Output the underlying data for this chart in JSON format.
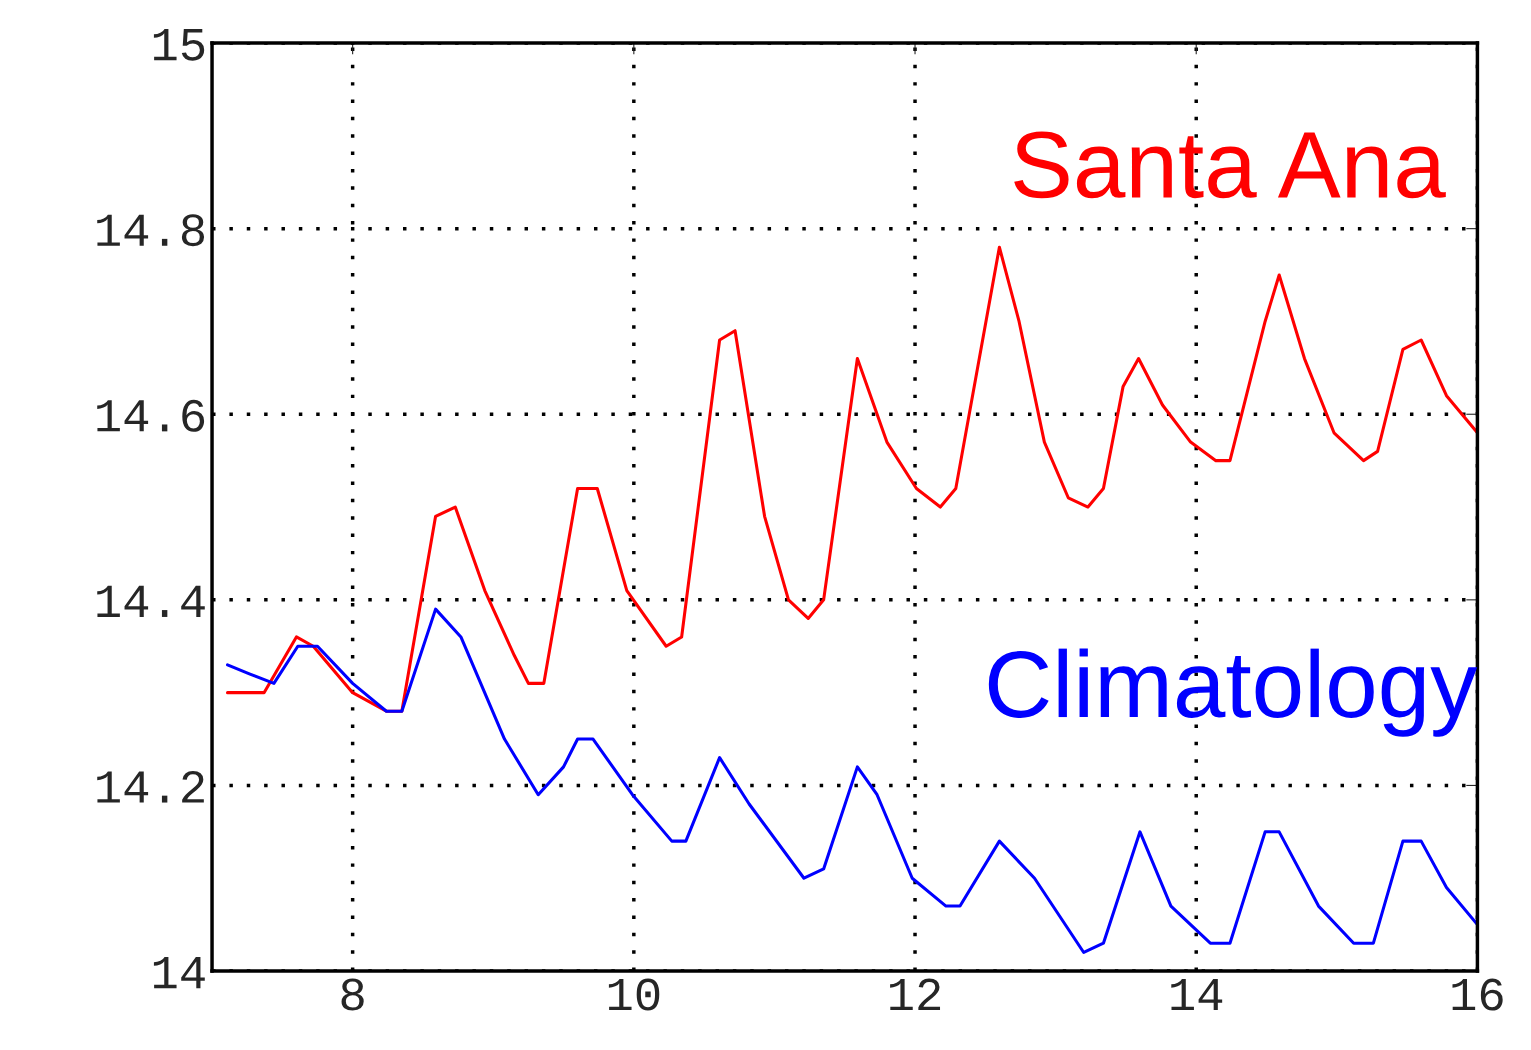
{
  "chart_data": {
    "type": "line",
    "xlim": [
      7,
      16
    ],
    "xticks": [
      8,
      10,
      12,
      14,
      16
    ],
    "ylim": [
      14,
      15
    ],
    "yticks": [
      14,
      14.2,
      14.4,
      14.6,
      14.8,
      15
    ],
    "grid": true,
    "legend": false,
    "series": [
      {
        "name": "Santa Ana",
        "color": "#ff0000",
        "x": [
          7.11,
          7.37,
          7.6,
          7.72,
          8.0,
          8.24,
          8.35,
          8.59,
          8.73,
          8.94,
          9.15,
          9.25,
          9.36,
          9.6,
          9.74,
          9.95,
          10.23,
          10.34,
          10.61,
          10.72,
          10.93,
          11.1,
          11.24,
          11.35,
          11.59,
          11.8,
          12.01,
          12.18,
          12.29,
          12.6,
          12.74,
          12.92,
          13.09,
          13.23,
          13.34,
          13.48,
          13.59,
          13.76,
          13.96,
          14.14,
          14.24,
          14.49,
          14.59,
          14.77,
          14.98,
          15.19,
          15.29,
          15.47,
          15.6,
          15.78,
          16.0
        ],
        "values": [
          14.3,
          14.3,
          14.36,
          14.35,
          14.3,
          14.28,
          14.28,
          14.49,
          14.5,
          14.41,
          14.34,
          14.31,
          14.31,
          14.52,
          14.52,
          14.41,
          14.35,
          14.36,
          14.68,
          14.69,
          14.49,
          14.4,
          14.38,
          14.4,
          14.66,
          14.57,
          14.52,
          14.5,
          14.52,
          14.78,
          14.7,
          14.57,
          14.51,
          14.5,
          14.52,
          14.63,
          14.66,
          14.61,
          14.57,
          14.55,
          14.55,
          14.7,
          14.75,
          14.66,
          14.58,
          14.55,
          14.56,
          14.67,
          14.68,
          14.62,
          14.58
        ]
      },
      {
        "name": "Climatology",
        "color": "#0000ff",
        "x": [
          7.11,
          7.27,
          7.44,
          7.61,
          7.75,
          8.0,
          8.24,
          8.35,
          8.59,
          8.77,
          9.08,
          9.32,
          9.5,
          9.6,
          9.71,
          9.99,
          10.27,
          10.37,
          10.61,
          10.82,
          11.21,
          11.35,
          11.59,
          11.73,
          11.98,
          12.22,
          12.32,
          12.6,
          12.85,
          13.2,
          13.34,
          13.6,
          13.82,
          14.1,
          14.24,
          14.49,
          14.59,
          14.87,
          15.12,
          15.26,
          15.47,
          15.6,
          15.78,
          16.0
        ],
        "values": [
          14.33,
          14.32,
          14.31,
          14.35,
          14.35,
          14.31,
          14.28,
          14.28,
          14.39,
          14.36,
          14.25,
          14.19,
          14.22,
          14.25,
          14.25,
          14.19,
          14.14,
          14.14,
          14.23,
          14.18,
          14.1,
          14.11,
          14.22,
          14.19,
          14.1,
          14.07,
          14.07,
          14.14,
          14.1,
          14.02,
          14.03,
          14.15,
          14.07,
          14.03,
          14.03,
          14.15,
          14.15,
          14.07,
          14.03,
          14.03,
          14.14,
          14.14,
          14.09,
          14.05
        ]
      }
    ]
  }
}
